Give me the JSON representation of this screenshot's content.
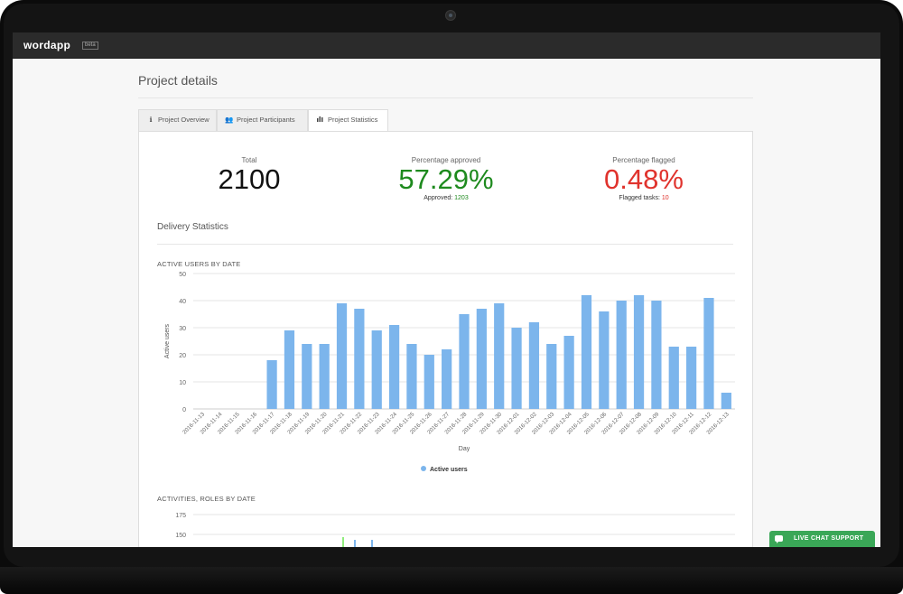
{
  "app": {
    "logo": "wordapp",
    "logo_badge": "beta"
  },
  "page": {
    "title": "Project details"
  },
  "tabs": [
    {
      "label": "Project Overview",
      "icon": "info-icon",
      "active": false
    },
    {
      "label": "Project Participants",
      "icon": "users-icon",
      "active": false
    },
    {
      "label": "Project Statistics",
      "icon": "bar-chart-icon",
      "active": true
    }
  ],
  "stats": {
    "total": {
      "label": "Total",
      "value": "2100"
    },
    "approved": {
      "label": "Percentage approved",
      "value": "57.29%",
      "sub_label": "Approved:",
      "sub_value": "1203",
      "color": "#1e8a1e"
    },
    "flagged": {
      "label": "Percentage flagged",
      "value": "0.48%",
      "sub_label": "Flagged tasks:",
      "sub_value": "10",
      "color": "#e0332d"
    }
  },
  "section": {
    "title": "Delivery Statistics"
  },
  "chart_data": [
    {
      "type": "bar",
      "title": "ACTIVE USERS BY DATE",
      "xlabel": "Day",
      "ylabel": "Active users",
      "ylim": [
        0,
        50
      ],
      "yticks": [
        0,
        10,
        20,
        30,
        40,
        50
      ],
      "grid": true,
      "legend": "bottom",
      "categories": [
        "2016-11-13",
        "2016-11-14",
        "2016-11-15",
        "2016-11-16",
        "2016-11-17",
        "2016-11-18",
        "2016-11-19",
        "2016-11-20",
        "2016-11-21",
        "2016-11-22",
        "2016-11-23",
        "2016-11-24",
        "2016-11-25",
        "2016-11-26",
        "2016-11-27",
        "2016-11-28",
        "2016-11-29",
        "2016-11-30",
        "2016-12-01",
        "2016-12-02",
        "2016-12-03",
        "2016-12-04",
        "2016-12-05",
        "2016-12-06",
        "2016-12-07",
        "2016-12-08",
        "2016-12-09",
        "2016-12-10",
        "2016-12-11",
        "2016-12-12",
        "2016-12-13"
      ],
      "series": [
        {
          "name": "Active users",
          "color": "#7cb5ec",
          "values": [
            0,
            0,
            0,
            0,
            18,
            29,
            24,
            24,
            39,
            37,
            29,
            31,
            24,
            20,
            22,
            35,
            37,
            39,
            30,
            32,
            24,
            27,
            42,
            36,
            40,
            42,
            40,
            23,
            23,
            41,
            6
          ]
        }
      ]
    },
    {
      "type": "bar",
      "title": "ACTIVITIES, ROLES BY DATE",
      "yticks_visible": [
        175,
        150
      ],
      "partial": true
    }
  ],
  "chat": {
    "label": "LIVE CHAT SUPPORT",
    "color": "#3aa757"
  }
}
